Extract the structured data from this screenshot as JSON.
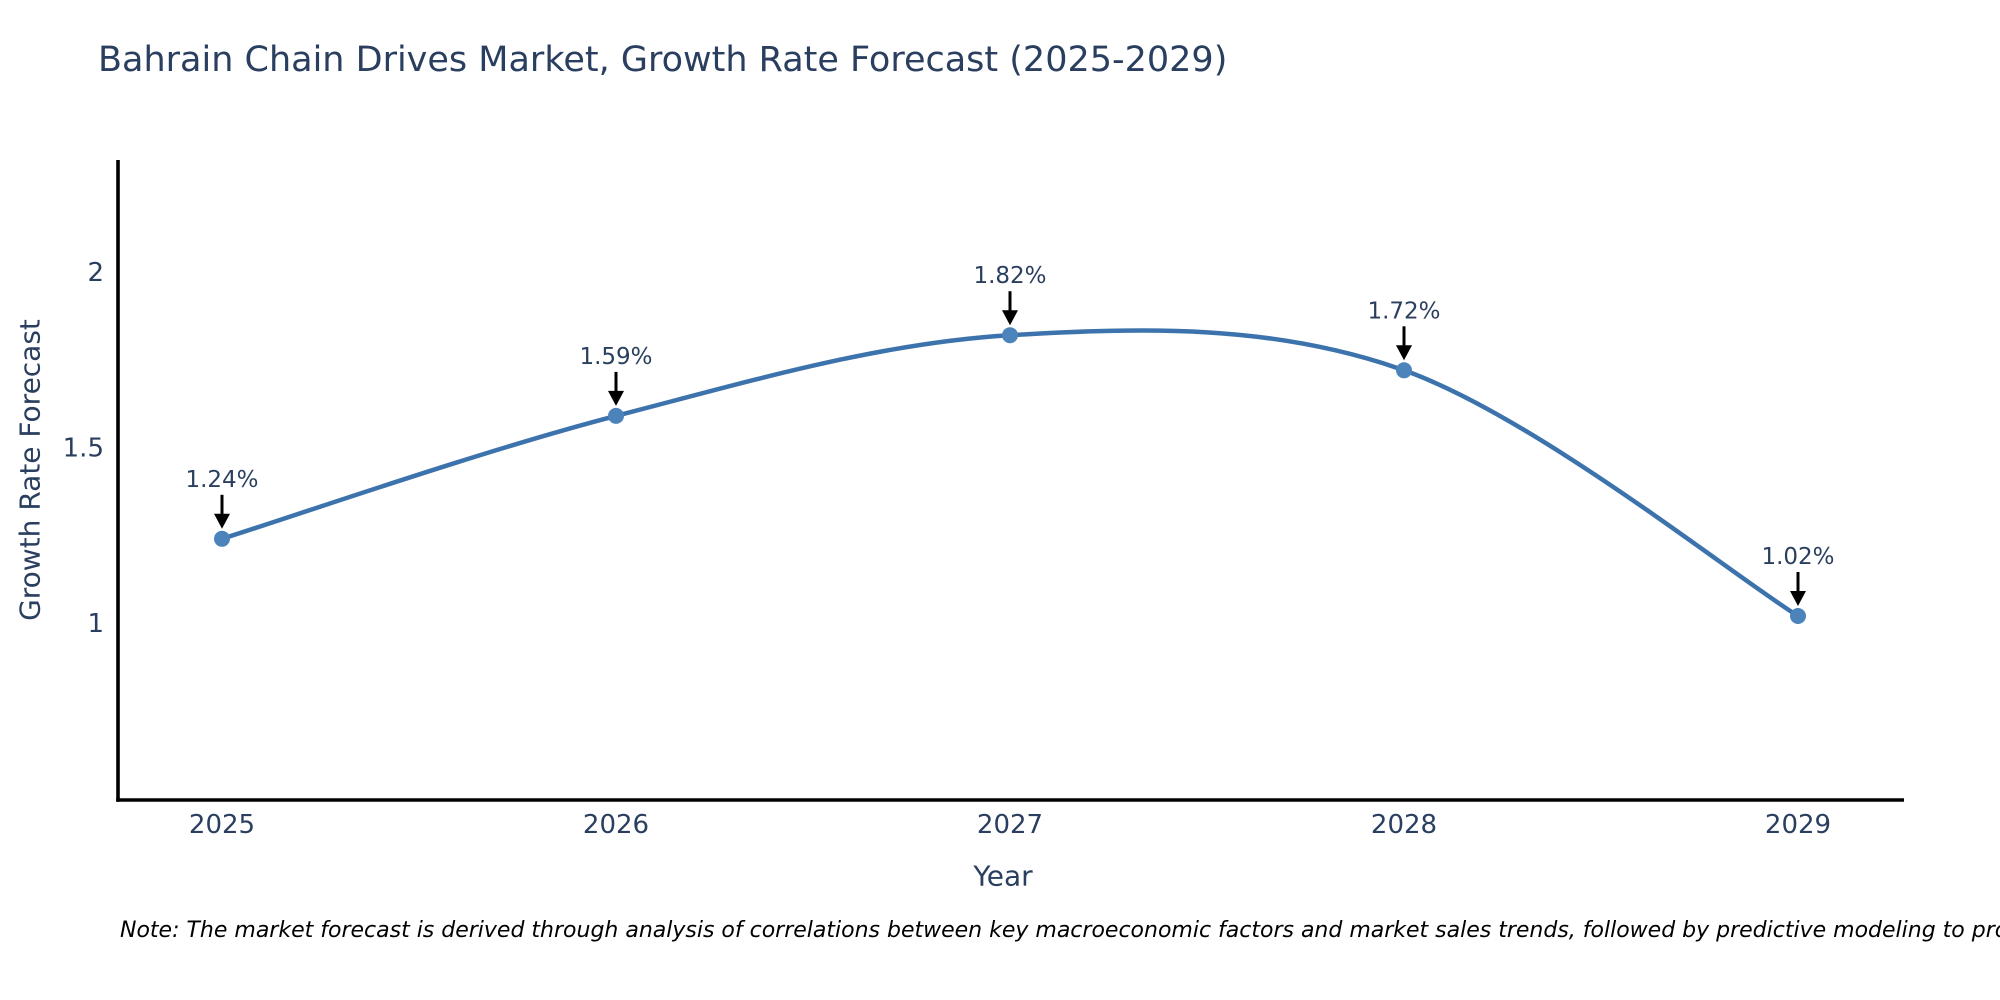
{
  "page": {
    "title": "Bahrain Chain Drives Market, Growth Rate Forecast (2025-2029)",
    "note": "Note: The market forecast is derived through analysis of correlations between key macroeconomic factors and market sales trends, followed by predictive modeling to project future sales"
  },
  "chart_data": {
    "type": "line",
    "line_shape": "spline",
    "title": "Bahrain Chain Drives Market, Growth Rate Forecast (2025-2029)",
    "xlabel": "Year",
    "ylabel": "Growth Rate Forecast",
    "categories": [
      "2025",
      "2026",
      "2027",
      "2028",
      "2029"
    ],
    "values": [
      1.24,
      1.59,
      1.82,
      1.72,
      1.02
    ],
    "point_labels": [
      "1.24%",
      "1.59%",
      "1.82%",
      "1.72%",
      "1.02%"
    ],
    "yticks": [
      1,
      1.5,
      2
    ],
    "ytick_labels": [
      "1",
      "1.5",
      "2"
    ],
    "ylim": [
      0.5,
      2.32
    ],
    "grid": false,
    "legend": "none",
    "annotation_style": "value label with downward black arrow above each data point",
    "colors": {
      "line": "#3d73ac",
      "marker": "#4d83bb",
      "arrow": "#000000",
      "axis": "#000000",
      "text": "#2a3f5f",
      "note": "#000000",
      "background": "#ffffff"
    }
  }
}
